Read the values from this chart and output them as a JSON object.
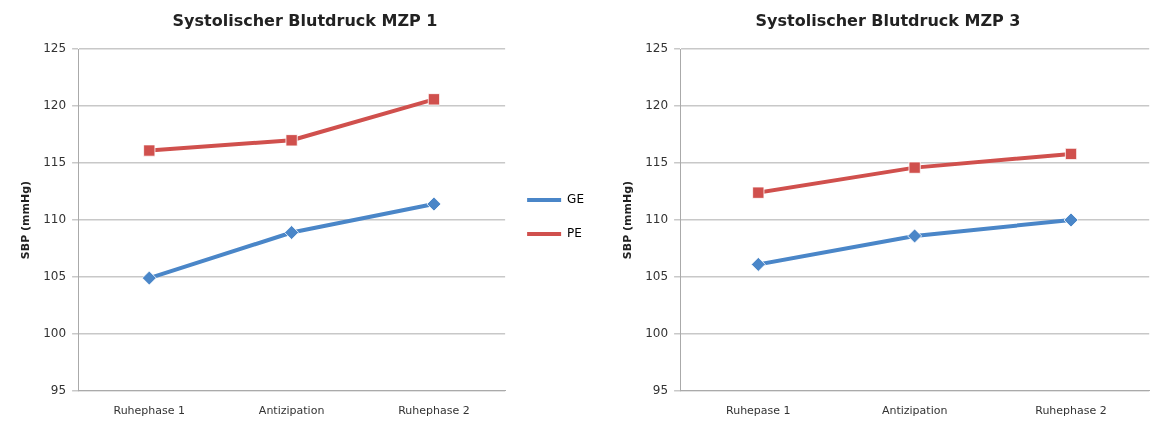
{
  "chart_data": [
    {
      "type": "line",
      "title": "Systolischer Blutdruck MZP 1",
      "ylabel": "SBP (mmHg)",
      "categories": [
        "Ruhephase 1",
        "Antizipation",
        "Ruhephase 2"
      ],
      "series": [
        {
          "name": "GE",
          "color": "#4a86c8",
          "marker": "diamond",
          "values": [
            104.9,
            108.9,
            111.4
          ]
        },
        {
          "name": "PE",
          "color": "#d0504d",
          "marker": "square",
          "values": [
            116.1,
            117.0,
            120.6
          ]
        }
      ],
      "ylim": [
        95,
        125
      ],
      "yticks": [
        95,
        100,
        105,
        110,
        115,
        120,
        125
      ],
      "grid": "y",
      "legend": "right",
      "line_style": "solid"
    },
    {
      "type": "line",
      "title": "Systolischer Blutdruck MZP 3",
      "ylabel": "SBP (mmHg)",
      "categories": [
        "Ruhepase 1",
        "Antizipation",
        "Ruhephase 2"
      ],
      "series": [
        {
          "color": "#4a86c8",
          "marker": "diamond",
          "values": [
            106.1,
            108.6,
            110.0
          ]
        },
        {
          "color": "#d0504d",
          "marker": "square",
          "values": [
            112.4,
            114.6,
            115.8
          ]
        }
      ],
      "ylim": [
        95,
        125
      ],
      "yticks": [
        95,
        100,
        105,
        110,
        115,
        120,
        125
      ],
      "grid": "y",
      "line_style": "solid"
    }
  ]
}
